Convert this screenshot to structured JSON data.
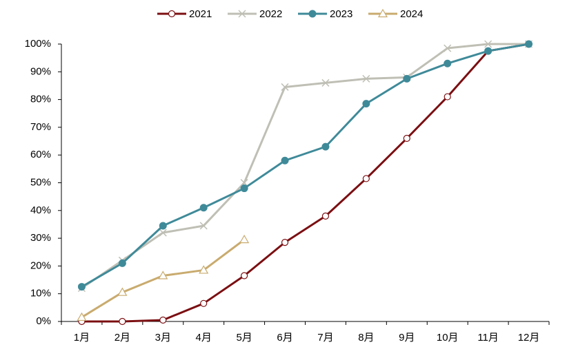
{
  "chart_data": {
    "type": "line",
    "categories": [
      "1月",
      "2月",
      "3月",
      "4月",
      "5月",
      "6月",
      "7月",
      "8月",
      "9月",
      "10月",
      "11月",
      "12月"
    ],
    "series": [
      {
        "name": "2021",
        "color": "#7b0f12",
        "marker": "circle-open",
        "values": [
          0,
          0,
          0.5,
          6.5,
          16.5,
          28.5,
          38,
          51.5,
          66,
          81,
          97.5,
          100
        ]
      },
      {
        "name": "2022",
        "color": "#bfbfb5",
        "marker": "x",
        "values": [
          12,
          22,
          32,
          34.5,
          50,
          84.5,
          86,
          87.5,
          88,
          98.5,
          100,
          100
        ]
      },
      {
        "name": "2023",
        "color": "#3f8a99",
        "marker": "circle",
        "values": [
          12.5,
          21,
          34.5,
          41,
          48,
          58,
          63,
          78.5,
          87.5,
          93,
          97.5,
          100
        ]
      },
      {
        "name": "2024",
        "color": "#c9ab6e",
        "marker": "triangle-open",
        "values": [
          1.5,
          10.5,
          16.5,
          18.5,
          29.5,
          null,
          null,
          null,
          null,
          null,
          null,
          null
        ]
      }
    ],
    "ylim": [
      0,
      100
    ],
    "yticks": [
      {
        "value": 0,
        "label": "0%"
      },
      {
        "value": 10,
        "label": "10%"
      },
      {
        "value": 20,
        "label": "20%"
      },
      {
        "value": 30,
        "label": "30%"
      },
      {
        "value": 40,
        "label": "40%"
      },
      {
        "value": 50,
        "label": "50%"
      },
      {
        "value": 60,
        "label": "60%"
      },
      {
        "value": 70,
        "label": "70%"
      },
      {
        "value": 80,
        "label": "80%"
      },
      {
        "value": 90,
        "label": "90%"
      },
      {
        "value": 100,
        "label": "100%"
      }
    ],
    "legend": "top"
  }
}
